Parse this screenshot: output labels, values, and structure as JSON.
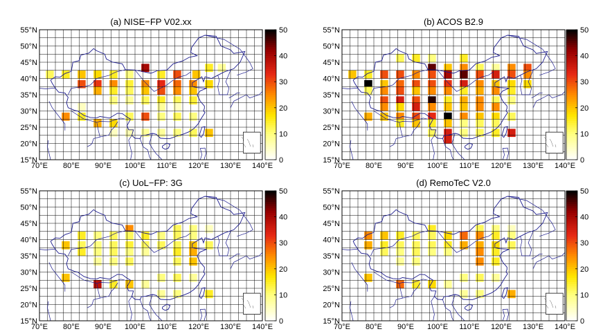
{
  "figure": {
    "panels": [
      {
        "title": "(a) NISE−FP V02.xx",
        "cells": [
          [
            102,
            42,
            40
          ],
          [
            112,
            40,
            30
          ],
          [
            118,
            40,
            20
          ],
          [
            122,
            42,
            15
          ],
          [
            126,
            42,
            8
          ],
          [
            72,
            40,
            12
          ],
          [
            77,
            40,
            15
          ],
          [
            82,
            40,
            20
          ],
          [
            87,
            40,
            18
          ],
          [
            92,
            40,
            15
          ],
          [
            97,
            40,
            10
          ],
          [
            107,
            40,
            15
          ],
          [
            82,
            37,
            30
          ],
          [
            87,
            37,
            32
          ],
          [
            92,
            37,
            25
          ],
          [
            97,
            37,
            14
          ],
          [
            102,
            37,
            25
          ],
          [
            107,
            37,
            33
          ],
          [
            112,
            37,
            28
          ],
          [
            117,
            37,
            25
          ],
          [
            122,
            37,
            18
          ],
          [
            87,
            35,
            22
          ],
          [
            92,
            35,
            15
          ],
          [
            97,
            35,
            12
          ],
          [
            102,
            35,
            20
          ],
          [
            107,
            35,
            30
          ],
          [
            112,
            35,
            25
          ],
          [
            117,
            35,
            20
          ],
          [
            92,
            32,
            10
          ],
          [
            97,
            32,
            8
          ],
          [
            102,
            32,
            12
          ],
          [
            107,
            32,
            15
          ],
          [
            112,
            32,
            12
          ],
          [
            117,
            32,
            14
          ],
          [
            77,
            27,
            25
          ],
          [
            82,
            27,
            15
          ],
          [
            87,
            25,
            22
          ],
          [
            92,
            25,
            18
          ],
          [
            97,
            27,
            12
          ],
          [
            102,
            27,
            30
          ],
          [
            107,
            27,
            10
          ],
          [
            112,
            27,
            12
          ],
          [
            117,
            27,
            10
          ],
          [
            102,
            22,
            8
          ],
          [
            107,
            22,
            8
          ],
          [
            112,
            22,
            10
          ],
          [
            117,
            22,
            12
          ],
          [
            122,
            22,
            20
          ],
          [
            82,
            30,
            5
          ],
          [
            107,
            30,
            8
          ],
          [
            112,
            30,
            5
          ],
          [
            97,
            22,
            6
          ],
          [
            92,
            22,
            5
          ]
        ]
      },
      {
        "title": "(b) ACOS B2.9",
        "cells": [
          [
            97,
            42,
            45
          ],
          [
            102,
            42,
            20
          ],
          [
            107,
            42,
            25
          ],
          [
            112,
            42,
            12
          ],
          [
            117,
            42,
            8
          ],
          [
            122,
            42,
            25
          ],
          [
            127,
            42,
            30
          ],
          [
            107,
            45,
            15
          ],
          [
            92,
            45,
            15
          ],
          [
            87,
            45,
            12
          ],
          [
            97,
            45,
            10
          ],
          [
            72,
            40,
            20
          ],
          [
            77,
            40,
            15
          ],
          [
            82,
            40,
            30
          ],
          [
            87,
            40,
            30
          ],
          [
            92,
            40,
            25
          ],
          [
            97,
            40,
            30
          ],
          [
            102,
            40,
            40
          ],
          [
            107,
            40,
            45
          ],
          [
            112,
            40,
            30
          ],
          [
            117,
            40,
            35
          ],
          [
            122,
            40,
            30
          ],
          [
            127,
            40,
            25
          ],
          [
            77,
            37,
            50
          ],
          [
            82,
            37,
            20
          ],
          [
            87,
            37,
            28
          ],
          [
            92,
            37,
            30
          ],
          [
            97,
            37,
            30
          ],
          [
            102,
            37,
            32
          ],
          [
            107,
            37,
            35
          ],
          [
            112,
            37,
            25
          ],
          [
            117,
            37,
            20
          ],
          [
            122,
            37,
            18
          ],
          [
            127,
            37,
            18
          ],
          [
            77,
            35,
            12
          ],
          [
            82,
            35,
            25
          ],
          [
            87,
            35,
            30
          ],
          [
            92,
            35,
            20
          ],
          [
            97,
            35,
            25
          ],
          [
            102,
            35,
            25
          ],
          [
            107,
            35,
            15
          ],
          [
            112,
            35,
            22
          ],
          [
            117,
            35,
            25
          ],
          [
            122,
            35,
            15
          ],
          [
            82,
            32,
            30
          ],
          [
            87,
            32,
            35
          ],
          [
            92,
            32,
            30
          ],
          [
            97,
            32,
            48
          ],
          [
            102,
            32,
            15
          ],
          [
            107,
            32,
            22
          ],
          [
            112,
            32,
            25
          ],
          [
            117,
            32,
            12
          ],
          [
            122,
            32,
            10
          ],
          [
            82,
            30,
            25
          ],
          [
            87,
            30,
            18
          ],
          [
            92,
            30,
            35
          ],
          [
            97,
            30,
            25
          ],
          [
            102,
            30,
            20
          ],
          [
            107,
            30,
            20
          ],
          [
            112,
            30,
            25
          ],
          [
            117,
            30,
            25
          ],
          [
            77,
            27,
            22
          ],
          [
            82,
            27,
            20
          ],
          [
            87,
            27,
            25
          ],
          [
            92,
            27,
            30
          ],
          [
            97,
            27,
            33
          ],
          [
            102,
            27,
            50
          ],
          [
            107,
            27,
            25
          ],
          [
            112,
            27,
            20
          ],
          [
            117,
            27,
            18
          ],
          [
            122,
            27,
            12
          ],
          [
            87,
            25,
            15
          ],
          [
            92,
            25,
            20
          ],
          [
            97,
            25,
            15
          ],
          [
            102,
            25,
            20
          ],
          [
            107,
            25,
            10
          ],
          [
            112,
            25,
            12
          ],
          [
            117,
            25,
            12
          ],
          [
            102,
            22,
            35
          ],
          [
            107,
            22,
            10
          ],
          [
            112,
            22,
            12
          ],
          [
            117,
            22,
            15
          ],
          [
            122,
            22,
            35
          ],
          [
            102,
            20,
            35
          ],
          [
            97,
            22,
            12
          ]
        ]
      },
      {
        "title": "(c) UoL−FP: 3G",
        "cells": [
          [
            97,
            42,
            25
          ],
          [
            112,
            42,
            12
          ],
          [
            117,
            42,
            10
          ],
          [
            122,
            42,
            5
          ],
          [
            82,
            40,
            15
          ],
          [
            87,
            40,
            10
          ],
          [
            92,
            40,
            12
          ],
          [
            97,
            40,
            12
          ],
          [
            102,
            40,
            15
          ],
          [
            107,
            40,
            10
          ],
          [
            112,
            40,
            12
          ],
          [
            117,
            40,
            10
          ],
          [
            77,
            37,
            20
          ],
          [
            82,
            37,
            12
          ],
          [
            87,
            37,
            10
          ],
          [
            92,
            37,
            12
          ],
          [
            97,
            37,
            14
          ],
          [
            102,
            37,
            12
          ],
          [
            107,
            37,
            12
          ],
          [
            112,
            37,
            12
          ],
          [
            117,
            37,
            20
          ],
          [
            122,
            37,
            12
          ],
          [
            82,
            35,
            15
          ],
          [
            87,
            35,
            10
          ],
          [
            92,
            35,
            12
          ],
          [
            97,
            35,
            10
          ],
          [
            102,
            35,
            8
          ],
          [
            112,
            35,
            15
          ],
          [
            117,
            35,
            22
          ],
          [
            87,
            32,
            8
          ],
          [
            92,
            32,
            10
          ],
          [
            97,
            32,
            12
          ],
          [
            112,
            32,
            12
          ],
          [
            117,
            32,
            20
          ],
          [
            77,
            27,
            20
          ],
          [
            87,
            25,
            38
          ],
          [
            92,
            25,
            15
          ],
          [
            97,
            25,
            20
          ],
          [
            107,
            27,
            10
          ],
          [
            112,
            27,
            12
          ],
          [
            107,
            22,
            8
          ],
          [
            112,
            22,
            10
          ],
          [
            122,
            22,
            15
          ],
          [
            102,
            25,
            8
          ],
          [
            117,
            27,
            8
          ]
        ]
      },
      {
        "title": "(d) RemoTeC V2.0",
        "cells": [
          [
            97,
            42,
            15
          ],
          [
            112,
            42,
            12
          ],
          [
            117,
            42,
            10
          ],
          [
            122,
            42,
            5
          ],
          [
            77,
            40,
            25
          ],
          [
            82,
            40,
            20
          ],
          [
            87,
            40,
            15
          ],
          [
            92,
            40,
            12
          ],
          [
            97,
            40,
            12
          ],
          [
            102,
            40,
            18
          ],
          [
            107,
            40,
            28
          ],
          [
            112,
            40,
            25
          ],
          [
            117,
            40,
            15
          ],
          [
            122,
            40,
            10
          ],
          [
            77,
            37,
            22
          ],
          [
            82,
            37,
            15
          ],
          [
            87,
            37,
            12
          ],
          [
            92,
            37,
            12
          ],
          [
            97,
            37,
            12
          ],
          [
            102,
            37,
            15
          ],
          [
            107,
            37,
            22
          ],
          [
            112,
            37,
            22
          ],
          [
            117,
            37,
            18
          ],
          [
            122,
            37,
            12
          ],
          [
            82,
            35,
            12
          ],
          [
            87,
            35,
            10
          ],
          [
            92,
            35,
            12
          ],
          [
            97,
            35,
            10
          ],
          [
            102,
            35,
            10
          ],
          [
            112,
            35,
            25
          ],
          [
            117,
            35,
            15
          ],
          [
            87,
            32,
            8
          ],
          [
            92,
            32,
            10
          ],
          [
            112,
            32,
            25
          ],
          [
            117,
            32,
            15
          ],
          [
            77,
            27,
            20
          ],
          [
            87,
            25,
            28
          ],
          [
            92,
            25,
            15
          ],
          [
            97,
            25,
            18
          ],
          [
            107,
            27,
            10
          ],
          [
            112,
            27,
            12
          ],
          [
            107,
            22,
            8
          ],
          [
            112,
            22,
            10
          ],
          [
            122,
            22,
            22
          ],
          [
            102,
            25,
            8
          ],
          [
            117,
            27,
            8
          ]
        ]
      }
    ],
    "lat_labels": [
      "15°N",
      "20°N",
      "25°N",
      "30°N",
      "35°N",
      "40°N",
      "45°N",
      "50°N",
      "55°N"
    ],
    "lon_labels": [
      "70°E",
      "80°E",
      "90°E",
      "100°E",
      "110°E",
      "120°E",
      "130°E",
      "140°E"
    ],
    "colorbar_ticks": [
      "0",
      "10",
      "20",
      "30",
      "40",
      "50"
    ],
    "colors": {
      "border": "#1a1a8c",
      "grid": "#000000"
    }
  }
}
